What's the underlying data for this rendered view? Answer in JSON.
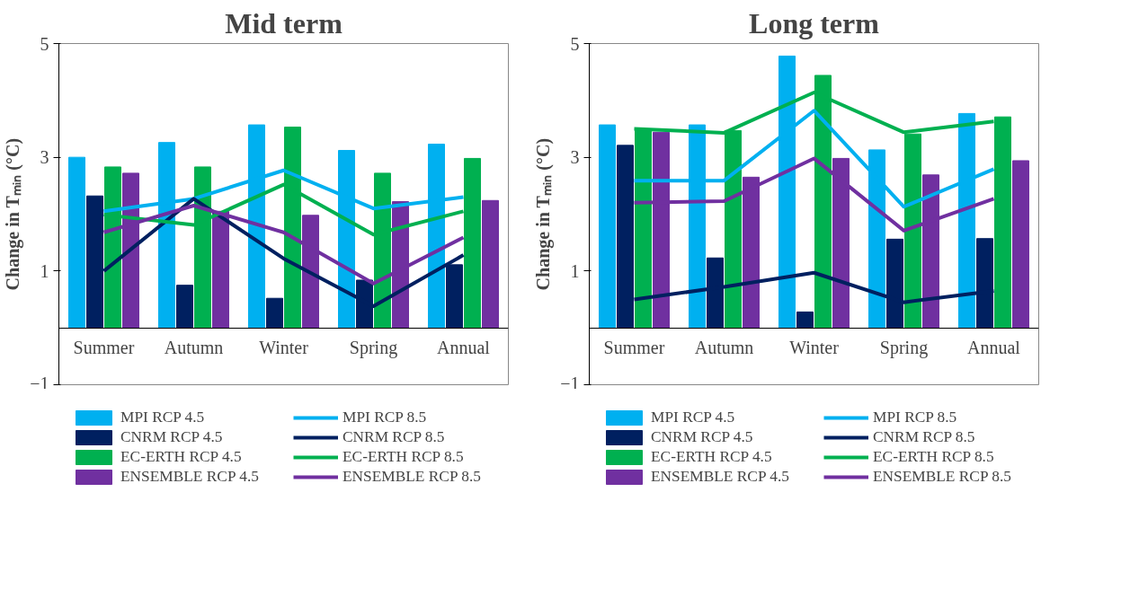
{
  "chart_data": [
    {
      "type": "bar",
      "title": "Mid term",
      "ylabel": "Change in Tₘᵢₙ (°C)",
      "categories": [
        "Summer",
        "Autumn",
        "Winter",
        "Spring",
        "Annual"
      ],
      "ylim": [
        -1,
        5
      ],
      "yticks": [
        -1,
        1,
        3,
        5
      ],
      "grid": false,
      "legend": "bottom",
      "series": [
        {
          "name": "MPI RCP 4.5",
          "color": "#00b0f0",
          "values": [
            3.0,
            3.26,
            3.57,
            3.12,
            3.23
          ]
        },
        {
          "name": "CNRM RCP 4.5",
          "color": "#002060",
          "values": [
            2.32,
            0.75,
            0.52,
            0.84,
            1.11
          ]
        },
        {
          "name": "EC-ERTH RCP 4.5",
          "color": "#00b050",
          "values": [
            2.83,
            2.83,
            3.53,
            2.72,
            2.98
          ]
        },
        {
          "name": "ENSEMBLE RCP 4.5",
          "color": "#7030a0",
          "values": [
            2.72,
            2.05,
            1.98,
            2.22,
            2.24
          ]
        },
        {
          "name": "MPI RCP 8.5",
          "type": "line",
          "color": "#00b0f0",
          "values": [
            2.05,
            2.27,
            2.77,
            2.1,
            2.3
          ]
        },
        {
          "name": "CNRM RCP 8.5",
          "type": "line",
          "color": "#002060",
          "values": [
            1.0,
            2.27,
            1.22,
            0.38,
            1.28
          ]
        },
        {
          "name": "EC-ERTH RCP 8.5",
          "type": "line",
          "color": "#00b050",
          "values": [
            1.99,
            1.81,
            2.52,
            1.64,
            2.05
          ]
        },
        {
          "name": "ENSEMBLE RCP 8.5",
          "type": "line",
          "color": "#7030a0",
          "values": [
            1.68,
            2.15,
            1.68,
            0.78,
            1.59
          ]
        }
      ]
    },
    {
      "type": "bar",
      "title": "Long term",
      "ylabel": "Change in Tₘᵢₙ (°C)",
      "categories": [
        "Summer",
        "Autumn",
        "Winter",
        "Spring",
        "Annual"
      ],
      "ylim": [
        -1,
        5
      ],
      "yticks": [
        -1,
        1,
        3,
        5
      ],
      "grid": false,
      "legend": "bottom",
      "series": [
        {
          "name": "MPI RCP 4.5",
          "color": "#00b0f0",
          "values": [
            3.57,
            3.57,
            4.78,
            3.13,
            3.77
          ]
        },
        {
          "name": "CNRM RCP 4.5",
          "color": "#002060",
          "values": [
            3.21,
            1.23,
            0.28,
            1.56,
            1.57
          ]
        },
        {
          "name": "EC-ERTH RCP 4.5",
          "color": "#00b050",
          "values": [
            3.5,
            3.47,
            4.44,
            3.41,
            3.71
          ]
        },
        {
          "name": "ENSEMBLE RCP 4.5",
          "color": "#7030a0",
          "values": [
            3.44,
            2.65,
            2.98,
            2.69,
            2.94
          ]
        },
        {
          "name": "MPI RCP 8.5",
          "type": "line",
          "color": "#00b0f0",
          "values": [
            2.59,
            2.59,
            3.82,
            2.13,
            2.79
          ]
        },
        {
          "name": "CNRM RCP 8.5",
          "type": "line",
          "color": "#002060",
          "values": [
            0.5,
            0.72,
            0.97,
            0.45,
            0.65
          ]
        },
        {
          "name": "EC-ERTH RCP 8.5",
          "type": "line",
          "color": "#00b050",
          "values": [
            3.5,
            3.43,
            4.14,
            3.44,
            3.63
          ]
        },
        {
          "name": "ENSEMBLE RCP 8.5",
          "type": "line",
          "color": "#7030a0",
          "values": [
            2.2,
            2.23,
            2.98,
            1.71,
            2.27
          ]
        }
      ]
    }
  ]
}
